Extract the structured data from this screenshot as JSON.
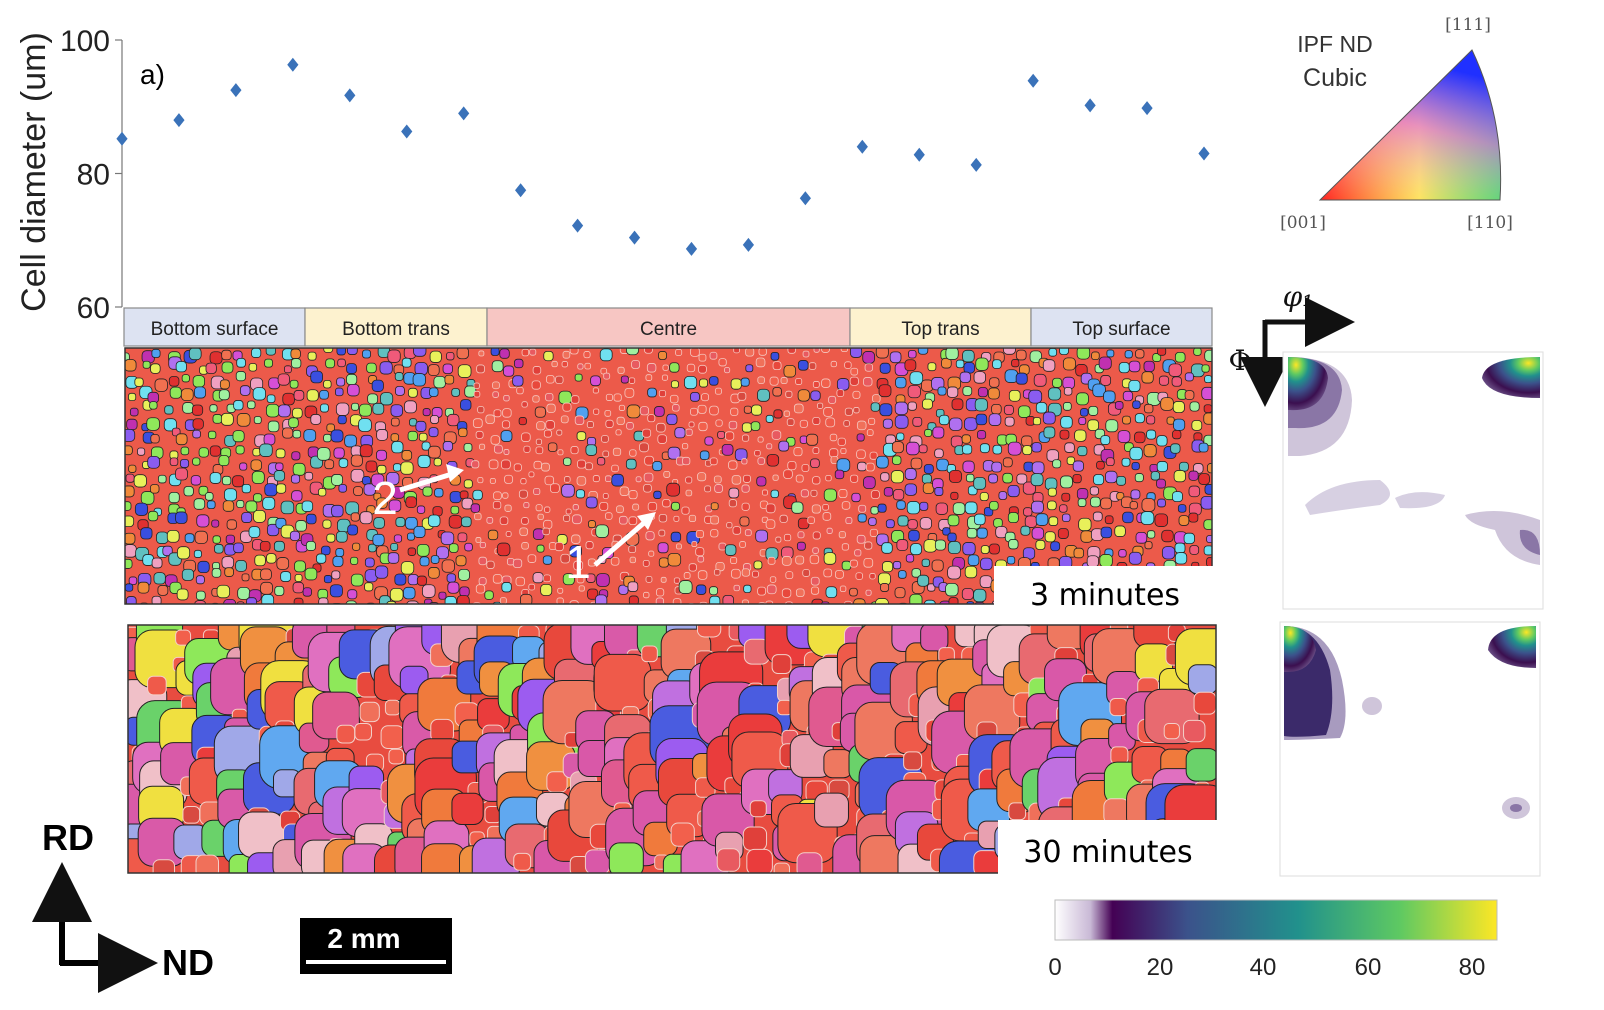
{
  "panel_label": "a)",
  "chart_data": {
    "type": "scatter",
    "ylabel": "Cell diameter (um)",
    "xlabel": "",
    "ylim": [
      60,
      100
    ],
    "yticks": [
      60,
      80,
      100
    ],
    "grid": false,
    "marker": "diamond",
    "series": [
      {
        "values": [
          85.2,
          88.0,
          92.5,
          96.3,
          91.7,
          86.3,
          89.0,
          77.5,
          72.2,
          70.4,
          68.7,
          69.3,
          76.3,
          84.0,
          82.8,
          81.3,
          93.9,
          90.2,
          89.8,
          83.0
        ]
      }
    ],
    "color": "#3a72b9"
  },
  "regions": [
    {
      "label": "Bottom surface",
      "color": "#dde3f2"
    },
    {
      "label": "Bottom trans",
      "color": "#fdf2cf"
    },
    {
      "label": "Centre",
      "color": "#f7c6c3"
    },
    {
      "label": "Top trans",
      "color": "#fdf2cf"
    },
    {
      "label": "Top surface",
      "color": "#dde3f2"
    }
  ],
  "ipf_key": {
    "title_line1": "IPF ND",
    "title_line2": "Cubic",
    "corner_111": "[111]",
    "corner_001": "[001]",
    "corner_110": "[110]"
  },
  "maps": {
    "map1_label": "3 minutes",
    "map2_label": "30 minutes",
    "arrow1_label": "1",
    "arrow2_label": "2"
  },
  "odf": {
    "phi1_label": "φ₁",
    "Phi_label": "Φ"
  },
  "axes_labels": {
    "rd": "RD",
    "nd": "ND"
  },
  "scale_bar": "2 mm",
  "colorbar": {
    "ticks": [
      "0",
      "20",
      "40",
      "60",
      "80"
    ],
    "colors": [
      "#ffffff",
      "#3b0f4f",
      "#3b528b",
      "#21918c",
      "#5ec962",
      "#fde725"
    ]
  }
}
